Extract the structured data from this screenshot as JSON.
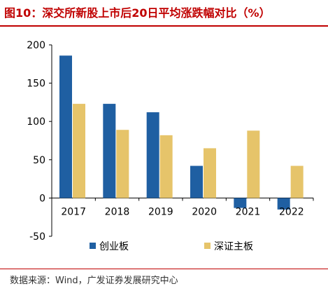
{
  "header": {
    "title": "图10：深交所新股上市后20日平均涨跌幅对比（%）"
  },
  "footer": {
    "source": "数据来源：Wind，广发证券发展研究中心"
  },
  "chart_data": {
    "type": "bar",
    "categories": [
      "2017",
      "2018",
      "2019",
      "2020",
      "2021",
      "2022"
    ],
    "series": [
      {
        "name": "创业板",
        "color": "#1f5fa2",
        "values": [
          186,
          123,
          112,
          42,
          -13,
          -15
        ]
      },
      {
        "name": "深证主板",
        "color": "#e6c46a",
        "values": [
          123,
          89,
          82,
          65,
          88,
          42
        ]
      }
    ],
    "ylim": [
      -50,
      200
    ],
    "yticks": [
      -50,
      0,
      50,
      100,
      150,
      200
    ],
    "xlabel": "",
    "ylabel": "",
    "grid": false,
    "legend_position": "bottom"
  }
}
